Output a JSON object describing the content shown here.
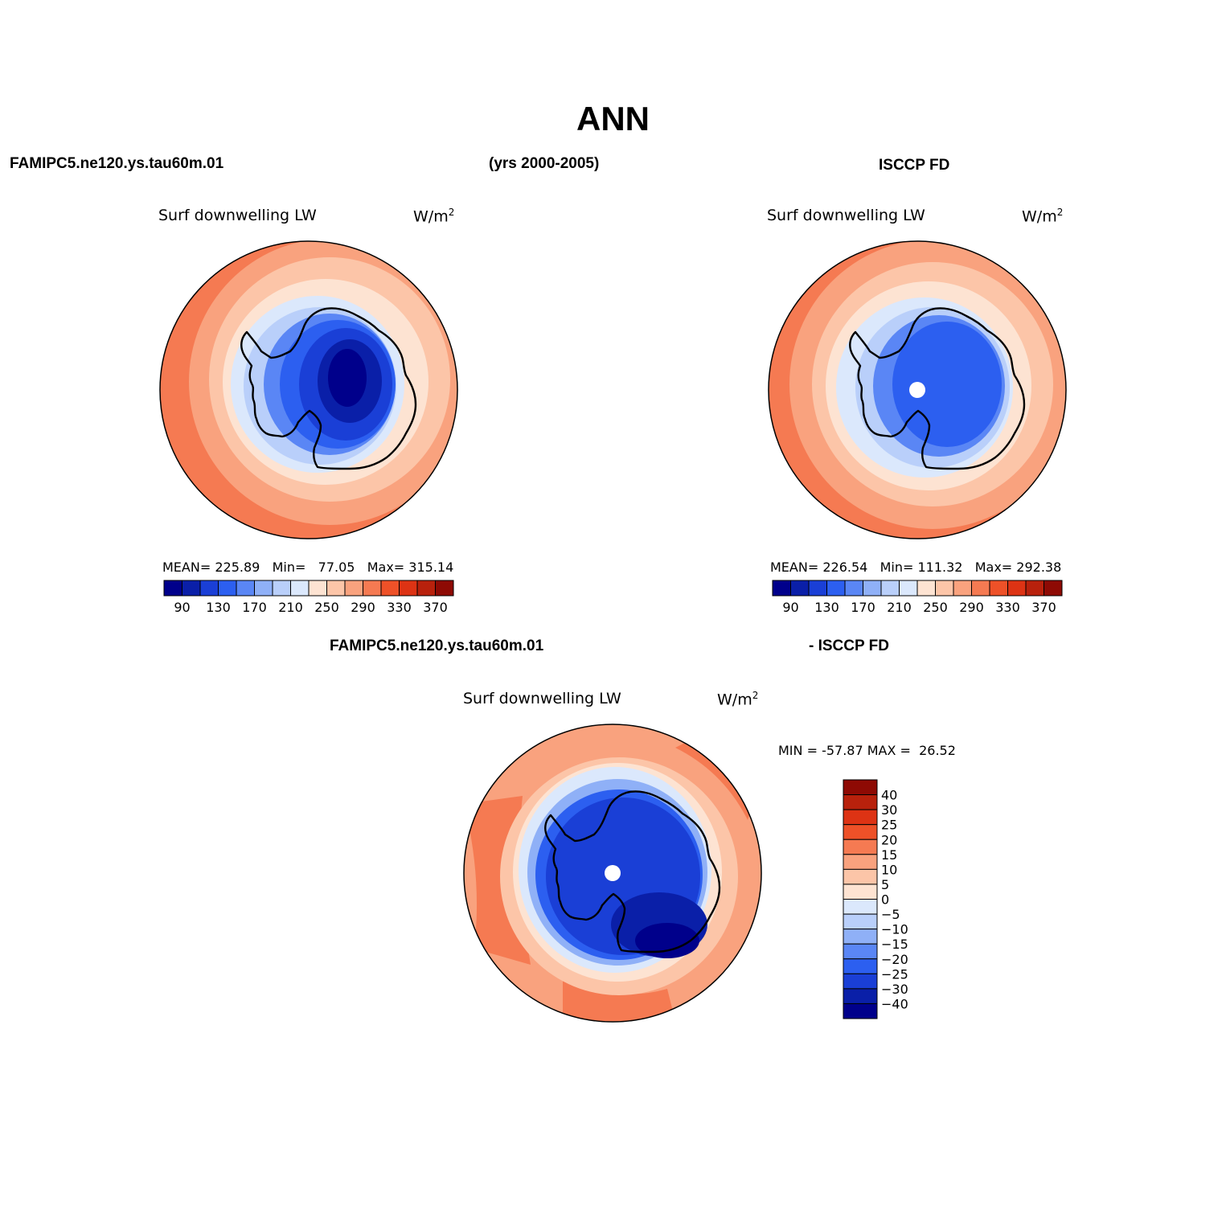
{
  "page": {
    "season": "ANN",
    "years": "(yrs 2000-2005)",
    "model_case": "FAMIPC5.ne120.ys.tau60m.01",
    "obs_case": "ISCCP FD",
    "diff_model_label": "FAMIPC5.ne120.ys.tau60m.01",
    "diff_obs_label": "- ISCCP FD"
  },
  "panels": {
    "model": {
      "variable": "Surf downwelling LW",
      "units_base": "W/m",
      "units_exp": "2",
      "mean_label": "MEAN=",
      "mean": "225.89",
      "min_label": "Min=",
      "min": "77.05",
      "max_label": "Max=",
      "max": "315.14"
    },
    "obs": {
      "variable": "Surf downwelling LW",
      "units_base": "W/m",
      "units_exp": "2",
      "mean_label": "MEAN=",
      "mean": "226.54",
      "min_label": "Min=",
      "min": "111.32",
      "max_label": "Max=",
      "max": "292.38"
    },
    "diff": {
      "variable": "Surf downwelling LW",
      "units_base": "W/m",
      "units_exp": "2",
      "minmax": "MIN = -57.87 MAX =  26.52"
    }
  },
  "colorbar_horizontal": {
    "colors": [
      "#00008b",
      "#0a1fa8",
      "#1a3fd6",
      "#2c5ff0",
      "#5a86f5",
      "#8fb0f7",
      "#b9cffa",
      "#dbe8fc",
      "#fde3d2",
      "#fcc5a8",
      "#f9a27e",
      "#f57a52",
      "#ee5128",
      "#dd3314",
      "#b8210c",
      "#8e0a04"
    ],
    "tick_labels": [
      "90",
      "130",
      "170",
      "210",
      "250",
      "290",
      "330",
      "370"
    ]
  },
  "colorbar_vertical": {
    "colors": [
      "#8e0a04",
      "#b8210c",
      "#dd3314",
      "#ee5128",
      "#f57a52",
      "#f9a27e",
      "#fcc5a8",
      "#fde3d2",
      "#dbe8fc",
      "#b9cffa",
      "#8fb0f7",
      "#5a86f5",
      "#2c5ff0",
      "#1a3fd6",
      "#0a1fa8",
      "#00008b"
    ],
    "tick_labels": [
      "40",
      "30",
      "25",
      "20",
      "15",
      "10",
      "5",
      "0",
      "−5",
      "−10",
      "−15",
      "−20",
      "−25",
      "−30",
      "−40"
    ]
  }
}
